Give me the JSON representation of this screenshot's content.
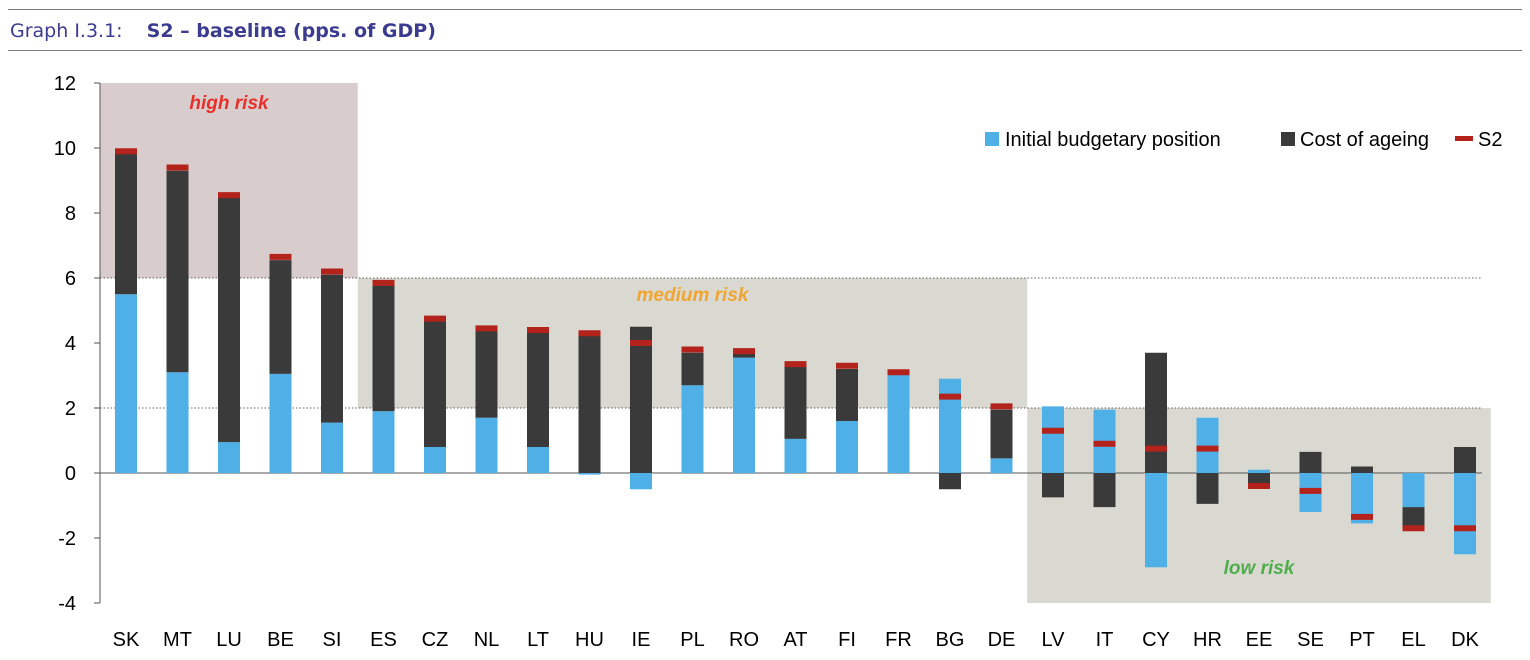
{
  "header": {
    "graph_label": "Graph I.3.1:",
    "title": "S2 – baseline (pps. of GDP)"
  },
  "colors": {
    "initial_budgetary_position": "#4fb0e8",
    "cost_of_ageing": "#3a3a3a",
    "s2": "#b3231b",
    "high_risk_zone": "#d8cccc",
    "medium_risk_zone": "#d9d9d2",
    "low_risk_zone": "#d9d9d2",
    "high_risk_text": "#e8302a",
    "medium_risk_text": "#f0a530",
    "low_risk_text": "#4fae4b"
  },
  "chart_data": {
    "type": "bar",
    "stacked": true,
    "categories": [
      "SK",
      "MT",
      "LU",
      "BE",
      "SI",
      "ES",
      "CZ",
      "NL",
      "LT",
      "HU",
      "IE",
      "PL",
      "RO",
      "AT",
      "FI",
      "FR",
      "BG",
      "DE",
      "LV",
      "IT",
      "CY",
      "HR",
      "EE",
      "SE",
      "PT",
      "EL",
      "DK"
    ],
    "series": [
      {
        "name": "Initial budgetary position",
        "type": "bar",
        "values": [
          5.5,
          3.1,
          0.95,
          3.05,
          1.55,
          1.9,
          0.8,
          1.7,
          0.8,
          -0.05,
          -0.5,
          2.7,
          3.55,
          1.05,
          1.6,
          3.05,
          2.9,
          0.45,
          2.05,
          1.95,
          -2.9,
          1.7,
          0.1,
          -1.2,
          -1.55,
          -1.05,
          -2.5
        ]
      },
      {
        "name": "Cost of ageing",
        "type": "bar",
        "values": [
          4.35,
          6.2,
          7.55,
          3.5,
          4.55,
          3.9,
          3.9,
          2.7,
          3.55,
          4.3,
          4.5,
          1.0,
          0.15,
          2.25,
          1.6,
          0.0,
          -0.5,
          1.5,
          -0.75,
          -1.05,
          3.7,
          -0.95,
          -0.45,
          0.65,
          0.2,
          -0.65,
          0.8
        ]
      },
      {
        "name": "S2",
        "type": "marker",
        "values": [
          9.9,
          9.4,
          8.55,
          6.65,
          6.2,
          5.85,
          4.75,
          4.45,
          4.4,
          4.3,
          4.0,
          3.8,
          3.75,
          3.35,
          3.3,
          3.1,
          2.35,
          2.05,
          1.3,
          0.9,
          0.75,
          0.75,
          -0.4,
          -0.55,
          -1.35,
          -1.7,
          -1.7
        ]
      }
    ],
    "ylim": [
      -4,
      12
    ],
    "yticks": [
      -4,
      -2,
      0,
      2,
      4,
      6,
      8,
      10,
      12
    ],
    "risk_zones": [
      {
        "label": "high risk",
        "from_category": "SK",
        "to_category": "SI",
        "y_range": [
          6,
          12
        ]
      },
      {
        "label": "medium risk",
        "from_category": "ES",
        "to_category": "DE",
        "y_range": [
          2,
          6
        ]
      },
      {
        "label": "low risk",
        "from_category": "LV",
        "to_category": "DK",
        "y_range": [
          -4,
          2
        ]
      }
    ],
    "reference_lines": [
      2,
      6
    ],
    "legend_position": "top-right",
    "xlabel": "",
    "ylabel": ""
  }
}
